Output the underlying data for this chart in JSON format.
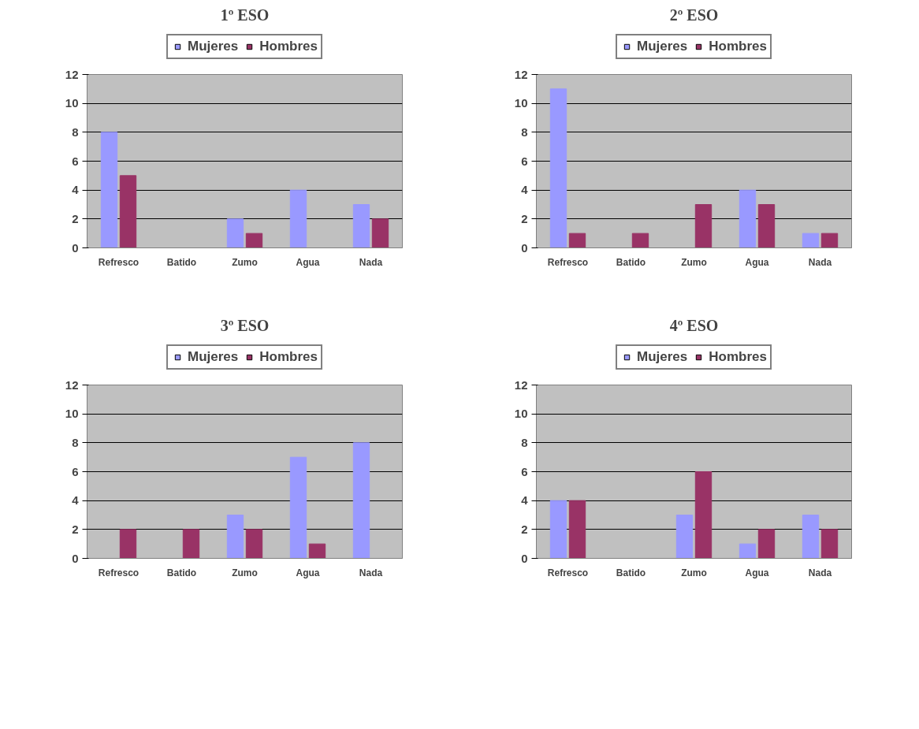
{
  "chart_data": [
    {
      "type": "bar",
      "title": "1º ESO",
      "categories": [
        "Refresco",
        "Batido",
        "Zumo",
        "Agua",
        "Nada"
      ],
      "series": [
        {
          "name": "Mujeres",
          "color": "#9999ff",
          "values": [
            8,
            0,
            2,
            4,
            3
          ]
        },
        {
          "name": "Hombres",
          "color": "#993366",
          "values": [
            5,
            0,
            1,
            0,
            2
          ]
        }
      ],
      "ylim": [
        0,
        12
      ],
      "yticks": [
        0,
        2,
        4,
        6,
        8,
        10,
        12
      ],
      "grid": "y",
      "legend": "top"
    },
    {
      "type": "bar",
      "title": "2º ESO",
      "categories": [
        "Refresco",
        "Batido",
        "Zumo",
        "Agua",
        "Nada"
      ],
      "series": [
        {
          "name": "Mujeres",
          "color": "#9999ff",
          "values": [
            11,
            0,
            0,
            4,
            1
          ]
        },
        {
          "name": "Hombres",
          "color": "#993366",
          "values": [
            1,
            1,
            3,
            3,
            1
          ]
        }
      ],
      "ylim": [
        0,
        12
      ],
      "yticks": [
        0,
        2,
        4,
        6,
        8,
        10,
        12
      ],
      "grid": "y",
      "legend": "top"
    },
    {
      "type": "bar",
      "title": "3º ESO",
      "categories": [
        "Refresco",
        "Batido",
        "Zumo",
        "Agua",
        "Nada"
      ],
      "series": [
        {
          "name": "Mujeres",
          "color": "#9999ff",
          "values": [
            0,
            0,
            3,
            7,
            8
          ]
        },
        {
          "name": "Hombres",
          "color": "#993366",
          "values": [
            2,
            2,
            2,
            1,
            0
          ]
        }
      ],
      "ylim": [
        0,
        12
      ],
      "yticks": [
        0,
        2,
        4,
        6,
        8,
        10,
        12
      ],
      "grid": "y",
      "legend": "top"
    },
    {
      "type": "bar",
      "title": "4º ESO",
      "categories": [
        "Refresco",
        "Batido",
        "Zumo",
        "Agua",
        "Nada"
      ],
      "series": [
        {
          "name": "Mujeres",
          "color": "#9999ff",
          "values": [
            4,
            0,
            3,
            1,
            3
          ]
        },
        {
          "name": "Hombres",
          "color": "#993366",
          "values": [
            4,
            0,
            6,
            2,
            2
          ]
        }
      ],
      "ylim": [
        0,
        12
      ],
      "yticks": [
        0,
        2,
        4,
        6,
        8,
        10,
        12
      ],
      "grid": "y",
      "legend": "top"
    }
  ]
}
